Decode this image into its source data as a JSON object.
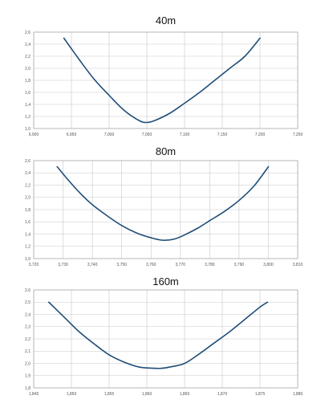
{
  "colors": {
    "line": "#1f4e79",
    "grid": "#c8c8c8",
    "axis": "#999999"
  },
  "chart_data": [
    {
      "type": "line",
      "title": "40m",
      "xlabel": "",
      "ylabel": "",
      "xlim": [
        6900,
        7250
      ],
      "ylim": [
        1.0,
        2.6
      ],
      "grid": true,
      "x_ticks": [
        6900,
        6950,
        7000,
        7050,
        7100,
        7150,
        7200,
        7250
      ],
      "x_tick_labels": [
        "6,900",
        "6,950",
        "7,000",
        "7,050",
        "7,100",
        "7,150",
        "7,200",
        "7,250"
      ],
      "y_ticks": [
        1.0,
        1.2,
        1.4,
        1.6,
        1.8,
        2.0,
        2.2,
        2.4,
        2.6
      ],
      "y_tick_labels": [
        "1,0",
        "1,2",
        "1,4",
        "1,6",
        "1,8",
        "2,0",
        "2,2",
        "2,4",
        "2,6"
      ],
      "series": [
        {
          "x": [
            6940,
            6960,
            6980,
            7000,
            7020,
            7040,
            7050,
            7060,
            7080,
            7100,
            7120,
            7140,
            7160,
            7180,
            7200
          ],
          "y": [
            2.5,
            2.15,
            1.82,
            1.55,
            1.3,
            1.13,
            1.1,
            1.13,
            1.25,
            1.42,
            1.6,
            1.8,
            2.0,
            2.2,
            2.5
          ]
        }
      ]
    },
    {
      "type": "line",
      "title": "80m",
      "xlabel": "",
      "ylabel": "",
      "xlim": [
        3720,
        3810
      ],
      "ylim": [
        1.0,
        2.6
      ],
      "grid": true,
      "x_ticks": [
        3720,
        3730,
        3740,
        3750,
        3760,
        3770,
        3780,
        3790,
        3800,
        3810
      ],
      "x_tick_labels": [
        "3,720",
        "3,730",
        "3,740",
        "3,750",
        "3,760",
        "3,770",
        "3,780",
        "3,790",
        "3,800",
        "3,810"
      ],
      "y_ticks": [
        1.0,
        1.2,
        1.4,
        1.6,
        1.8,
        2.0,
        2.2,
        2.4,
        2.6
      ],
      "y_tick_labels": [
        "1,0",
        "1,2",
        "1,4",
        "1,6",
        "1,8",
        "2,0",
        "2,2",
        "2,4",
        "2,6"
      ],
      "series": [
        {
          "x": [
            3728,
            3732,
            3736,
            3740,
            3745,
            3750,
            3755,
            3760,
            3764,
            3768,
            3772,
            3776,
            3780,
            3785,
            3790,
            3795,
            3800
          ],
          "y": [
            2.5,
            2.27,
            2.06,
            1.88,
            1.7,
            1.54,
            1.42,
            1.34,
            1.3,
            1.32,
            1.4,
            1.5,
            1.62,
            1.77,
            1.95,
            2.18,
            2.5
          ]
        }
      ]
    },
    {
      "type": "line",
      "title": "160m",
      "xlabel": "",
      "ylabel": "",
      "xlim": [
        1845,
        1880
      ],
      "ylim": [
        1.8,
        2.6
      ],
      "grid": true,
      "x_ticks": [
        1845,
        1850,
        1855,
        1860,
        1865,
        1870,
        1875,
        1880
      ],
      "x_tick_labels": [
        "1,845",
        "1,850",
        "1,855",
        "1,860",
        "1,865",
        "1,870",
        "1,875",
        "1,880"
      ],
      "y_ticks": [
        1.8,
        1.9,
        2.0,
        2.1,
        2.2,
        2.3,
        2.4,
        2.5,
        2.6
      ],
      "y_tick_labels": [
        "1,8",
        "1,9",
        "2,0",
        "2,1",
        "2,2",
        "2,3",
        "2,4",
        "2,5",
        "2,6"
      ],
      "series": [
        {
          "x": [
            1847,
            1849,
            1851,
            1853,
            1855,
            1857,
            1859,
            1861,
            1862,
            1863,
            1865,
            1867,
            1869,
            1871,
            1873,
            1875,
            1876
          ],
          "y": [
            2.5,
            2.38,
            2.26,
            2.16,
            2.07,
            2.01,
            1.97,
            1.96,
            1.96,
            1.97,
            2.0,
            2.08,
            2.17,
            2.26,
            2.36,
            2.46,
            2.5
          ]
        }
      ]
    }
  ]
}
